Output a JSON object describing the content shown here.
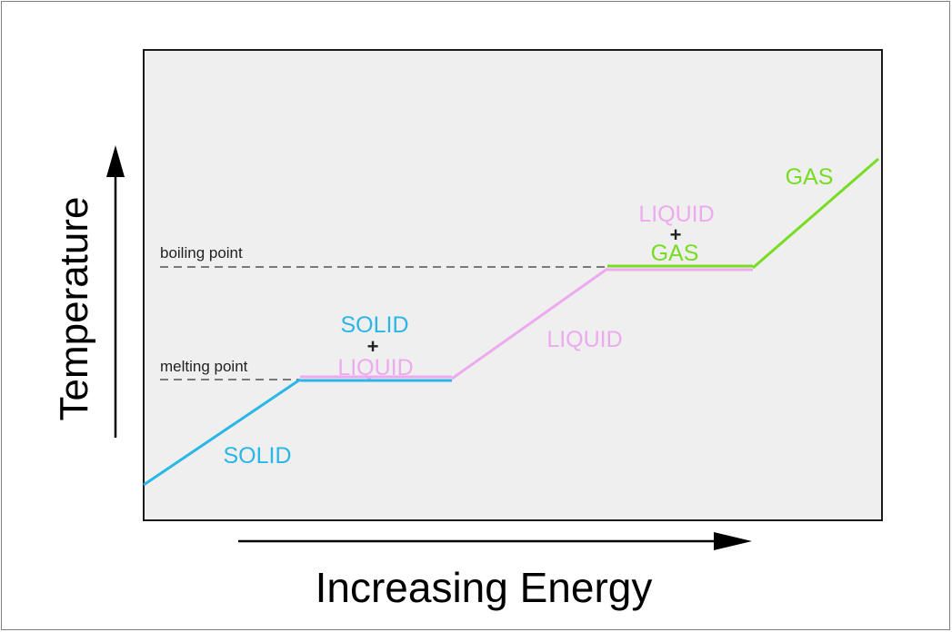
{
  "axes": {
    "x_label": "Increasing Energy",
    "y_label": "Temperature"
  },
  "reference_lines": {
    "melting": "melting point",
    "boiling": "boiling point"
  },
  "phases": {
    "solid": "SOLID",
    "solid_liquid": {
      "top": "SOLID",
      "plus": "+",
      "bottom": "LIQUID"
    },
    "liquid": "LIQUID",
    "liquid_gas": {
      "top": "LIQUID",
      "plus": "+",
      "bottom": "GAS"
    },
    "gas": "GAS"
  },
  "colors": {
    "solid": "#29b6e8",
    "liquid": "#eeaaee",
    "gas": "#77dd22",
    "text_dark": "#222222",
    "plot_bg": "#efefef"
  }
}
